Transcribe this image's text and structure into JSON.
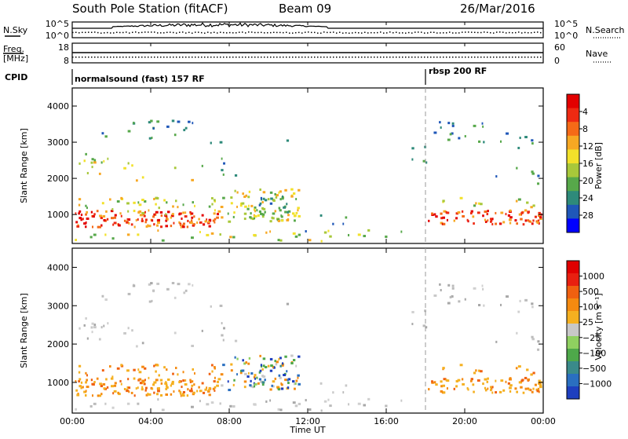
{
  "header": {
    "station": "South Pole Station (fitACF)",
    "beam": "Beam 09",
    "date": "26/Mar/2016"
  },
  "top_panels": {
    "nsky_label": "N.Sky",
    "nsky_ticks": [
      "10^5",
      "10^0"
    ],
    "nsearch_label": "N.Search",
    "nsearch_ticks": [
      "10^5",
      "10^0"
    ],
    "freq_label_1": "Freq.",
    "freq_label_2": "[MHz]",
    "freq_ticks": [
      "18",
      "8"
    ],
    "nave_label": "Nave",
    "nave_ticks": [
      "60",
      "0"
    ],
    "cpid_label": "CPID",
    "cpid_segments": [
      {
        "label": "normalsound (fast) 157 RF",
        "start_hour": 0
      },
      {
        "label": "rbsp 200 RF",
        "start_hour": 18
      }
    ]
  },
  "chart_data": [
    {
      "type": "heatmap",
      "name": "power-panel",
      "xlabel": "",
      "ylabel": "Slant Range [km]",
      "xlim": [
        0,
        24
      ],
      "ylim": [
        200,
        4500
      ],
      "yticks": [
        1000,
        2000,
        3000,
        4000
      ],
      "colorbar": {
        "label": "Power [dB]",
        "ticks": [
          "4",
          "8",
          "12",
          "16",
          "20",
          "24",
          "28"
        ],
        "colors": [
          "#0000ff",
          "#1f57b8",
          "#2e8a7a",
          "#57a84a",
          "#a8c83a",
          "#f2e12a",
          "#f7a823",
          "#f56a17",
          "#ee2a12",
          "#e30000"
        ]
      }
    },
    {
      "type": "heatmap",
      "name": "velocity-panel",
      "xlabel": "Time UT",
      "ylabel": "Slant Range [km]",
      "xlim": [
        0,
        24
      ],
      "ylim": [
        200,
        4500
      ],
      "yticks": [
        1000,
        2000,
        3000,
        4000
      ],
      "xticks": [
        "00:00",
        "04:00",
        "08:00",
        "12:00",
        "16:00",
        "20:00",
        "00:00"
      ],
      "colorbar": {
        "label": "Velocity [m s⁻¹]",
        "ticks": [
          "1000",
          "500",
          "100",
          "25",
          "−25",
          "−100",
          "−500",
          "−1000"
        ],
        "colors": [
          "#1e3fbf",
          "#2a6fc0",
          "#3a8a8a",
          "#4ea84a",
          "#8fd060",
          "#c8c8c8",
          "#f5b020",
          "#f58a10",
          "#f06010",
          "#e82010",
          "#e00000"
        ]
      }
    }
  ]
}
